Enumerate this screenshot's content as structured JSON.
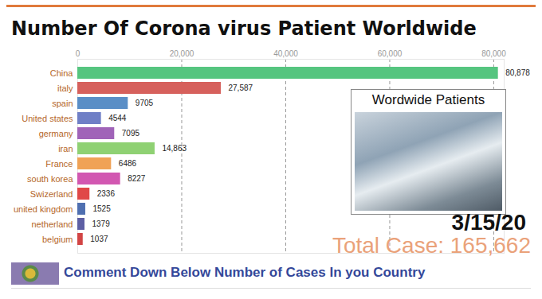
{
  "chart_data": {
    "type": "bar",
    "title": "Number Of Corona virus Patient Worldwide",
    "orientation": "horizontal",
    "categories": [
      "China",
      "italy",
      "spain",
      "United states",
      "germany",
      "iran",
      "France",
      "south korea",
      "Swizerland",
      "united kingdom",
      "netherland",
      "belgium"
    ],
    "values": [
      80878,
      27587,
      9705,
      4544,
      7095,
      14863,
      6486,
      8227,
      2336,
      1525,
      1379,
      1037
    ],
    "value_labels": [
      "80,878",
      "27,587",
      "9705",
      "4544",
      "7095",
      "14,863",
      "6486",
      "8227",
      "2336",
      "1525",
      "1379",
      "1037"
    ],
    "colors": [
      "#55c57f",
      "#d6605c",
      "#5a8ec6",
      "#6f7fc6",
      "#a063b8",
      "#8fd173",
      "#f0a256",
      "#d257b1",
      "#e04848",
      "#4f6fb0",
      "#5e5fa4",
      "#d24444"
    ],
    "data_labels": true,
    "xlim": [
      0,
      82000
    ],
    "xticks": [
      0,
      {
        "value": 20000,
        "label": "20,000"
      },
      {
        "value": 40000,
        "label": "40,000"
      },
      {
        "value": 60000,
        "label": "60,000"
      },
      {
        "value": 80000,
        "label": "80,000"
      }
    ],
    "grid": true,
    "annotations": [
      "Wordwide Patients",
      "3/15/20",
      "Total Case: 165,662",
      "Comment Down Below Number of Cases In you Country"
    ]
  }
}
